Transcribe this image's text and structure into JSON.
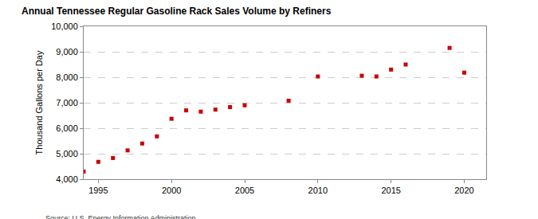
{
  "chart_data": {
    "type": "scatter",
    "title": "Annual Tennessee Regular Gasoline Rack Sales Volume by Refiners",
    "y_label": "Thousand Gallons per Day",
    "annotations": [
      "Source: U.S. Energy Information Administration"
    ],
    "x": [
      1994,
      1995,
      1996,
      1997,
      1998,
      1999,
      2000,
      2001,
      2002,
      2003,
      2004,
      2005,
      2008,
      2010,
      2013,
      2014,
      2015,
      2016,
      2019,
      2020
    ],
    "values": [
      4300,
      4680,
      4830,
      5130,
      5400,
      5680,
      6370,
      6700,
      6650,
      6730,
      6830,
      6900,
      7080,
      8030,
      8060,
      8030,
      8300,
      8500,
      9150,
      8180
    ],
    "color": "#cc0000",
    "marker": "square",
    "xlim": [
      1994,
      2021.5
    ],
    "xticks": [
      1995,
      2000,
      2005,
      2010,
      2015,
      2020
    ],
    "ylim": [
      4000,
      10000
    ],
    "yticks": [
      {
        "value": 4000,
        "label": "4,000"
      },
      {
        "value": 5000,
        "label": "5,000"
      },
      {
        "value": 6000,
        "label": "6,000"
      },
      {
        "value": 7000,
        "label": "7,000"
      },
      {
        "value": 8000,
        "label": "8,000"
      },
      {
        "value": 9000,
        "label": "9,000"
      },
      {
        "value": 10000,
        "label": "10,000"
      }
    ],
    "grid": true
  }
}
